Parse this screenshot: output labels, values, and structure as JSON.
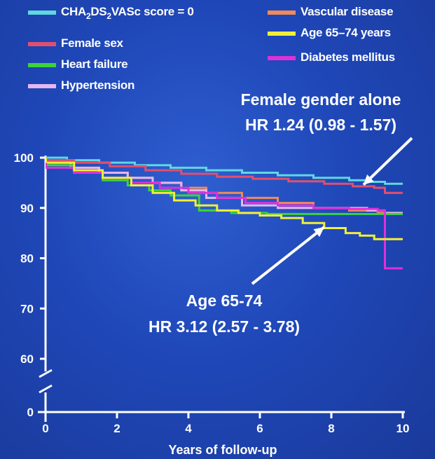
{
  "chart_data": {
    "type": "line",
    "subtype": "kaplan-meier step survival curves",
    "title": "",
    "xlabel": "Years of follow-up",
    "ylabel": "",
    "xlim": [
      0,
      10
    ],
    "ylim": [
      0,
      100
    ],
    "y_axis_break": "between 0 and 60",
    "x_ticks": [
      "0",
      "2",
      "4",
      "6",
      "8",
      "10"
    ],
    "y_ticks": [
      "0",
      "60",
      "70",
      "80",
      "90",
      "100"
    ],
    "grid": false,
    "legend_position": "top",
    "legend_layout": "two columns",
    "legend": [
      {
        "id": "cha2ds2vasc0",
        "label_parts": [
          "CHA",
          "2",
          "DS",
          "2",
          "VASc score = 0"
        ],
        "color": "#5fd8e0"
      },
      {
        "id": "female",
        "label_parts": [
          "Female sex"
        ],
        "color": "#e0506e"
      },
      {
        "id": "heartfailure",
        "label_parts": [
          "Heart failure"
        ],
        "color": "#3ed23a"
      },
      {
        "id": "hypertension",
        "label_parts": [
          "Hypertension"
        ],
        "color": "#e6b6ee"
      },
      {
        "id": "vascular",
        "label_parts": [
          "Vascular disease"
        ],
        "color": "#f08a5a"
      },
      {
        "id": "age6574",
        "label_parts": [
          "Age 65–74 years"
        ],
        "color": "#f2ee3a"
      },
      {
        "id": "diabetes",
        "label_parts": [
          "Diabetes mellitus"
        ],
        "color": "#e030d8"
      }
    ],
    "series": [
      {
        "id": "cha2ds2vasc0",
        "color": "#5fd8e0",
        "x": [
          0,
          0.6,
          1.5,
          2.5,
          3.5,
          4.5,
          5.5,
          6.5,
          7.5,
          8.5,
          9.0,
          9.5,
          10.0
        ],
        "y": [
          100,
          99.5,
          99,
          98.5,
          98,
          97.5,
          97,
          96.5,
          96,
          95.5,
          95.2,
          94.8,
          94.8
        ]
      },
      {
        "id": "female",
        "color": "#e0506e",
        "x": [
          0,
          0.8,
          1.8,
          2.8,
          3.8,
          4.8,
          5.8,
          6.8,
          7.8,
          8.6,
          9.2,
          9.5,
          10.0
        ],
        "y": [
          99.5,
          99,
          98.3,
          97.5,
          96.8,
          96.2,
          95.8,
          95.3,
          94.8,
          94.3,
          94,
          93,
          93
        ]
      },
      {
        "id": "vascular",
        "color": "#f08a5a",
        "x": [
          0,
          0.7,
          1.5,
          2.3,
          3.0,
          3.8,
          4.5,
          5.5,
          6.5,
          7.5,
          8.5,
          9.3,
          10.0
        ],
        "y": [
          99,
          98,
          97,
          96,
          95,
          94,
          93,
          92,
          91,
          90,
          89.5,
          89,
          89
        ]
      },
      {
        "id": "hypertension",
        "color": "#e6b6ee",
        "x": [
          0,
          0.7,
          1.5,
          2.3,
          3.0,
          3.8,
          4.5,
          5.5,
          6.5,
          7.5,
          8.5,
          9.0,
          9.5,
          10.0
        ],
        "y": [
          99,
          98,
          97,
          96,
          95,
          93.5,
          92,
          90.5,
          90,
          90,
          90,
          89.5,
          89,
          89
        ]
      },
      {
        "id": "heartfailure",
        "color": "#3ed23a",
        "x": [
          0,
          0.8,
          1.6,
          2.3,
          2.9,
          3.5,
          4.3,
          5.2,
          6.2,
          7.5,
          8.5,
          9.3,
          10.0
        ],
        "y": [
          98.5,
          97,
          95.5,
          94.5,
          93.5,
          92.5,
          89.5,
          89,
          88.8,
          88.8,
          88.8,
          88.8,
          88.8
        ]
      },
      {
        "id": "diabetes",
        "color": "#e030d8",
        "x": [
          0,
          0.8,
          1.6,
          2.4,
          3.2,
          4.0,
          4.8,
          5.6,
          6.5,
          7.5,
          8.5,
          9.3,
          9.5,
          10.0
        ],
        "y": [
          98,
          97,
          96,
          95,
          94,
          93,
          92,
          91,
          90.5,
          90,
          89.8,
          89.5,
          78,
          78
        ]
      },
      {
        "id": "age6574",
        "color": "#f2ee3a",
        "x": [
          0,
          0.8,
          1.6,
          2.4,
          3.0,
          3.6,
          4.2,
          4.8,
          5.4,
          6.0,
          6.6,
          7.2,
          7.8,
          8.4,
          8.8,
          9.2,
          10.0
        ],
        "y": [
          99,
          97.5,
          96,
          94.5,
          93,
          91.5,
          90.5,
          89.5,
          89,
          88.5,
          88,
          87,
          86,
          85,
          84.5,
          83.8,
          83.8
        ]
      }
    ],
    "annotations": [
      {
        "id": "female_annot",
        "lines": [
          "Female gender alone",
          "HR 1.24 (0.98 - 1.57)"
        ],
        "arrow_target": {
          "x": 8.9,
          "y": 94.6
        }
      },
      {
        "id": "age_annot",
        "lines": [
          "Age 65-74",
          "HR 3.12 (2.57 - 3.78)"
        ],
        "arrow_target": {
          "x": 7.8,
          "y": 86.2
        }
      }
    ]
  }
}
